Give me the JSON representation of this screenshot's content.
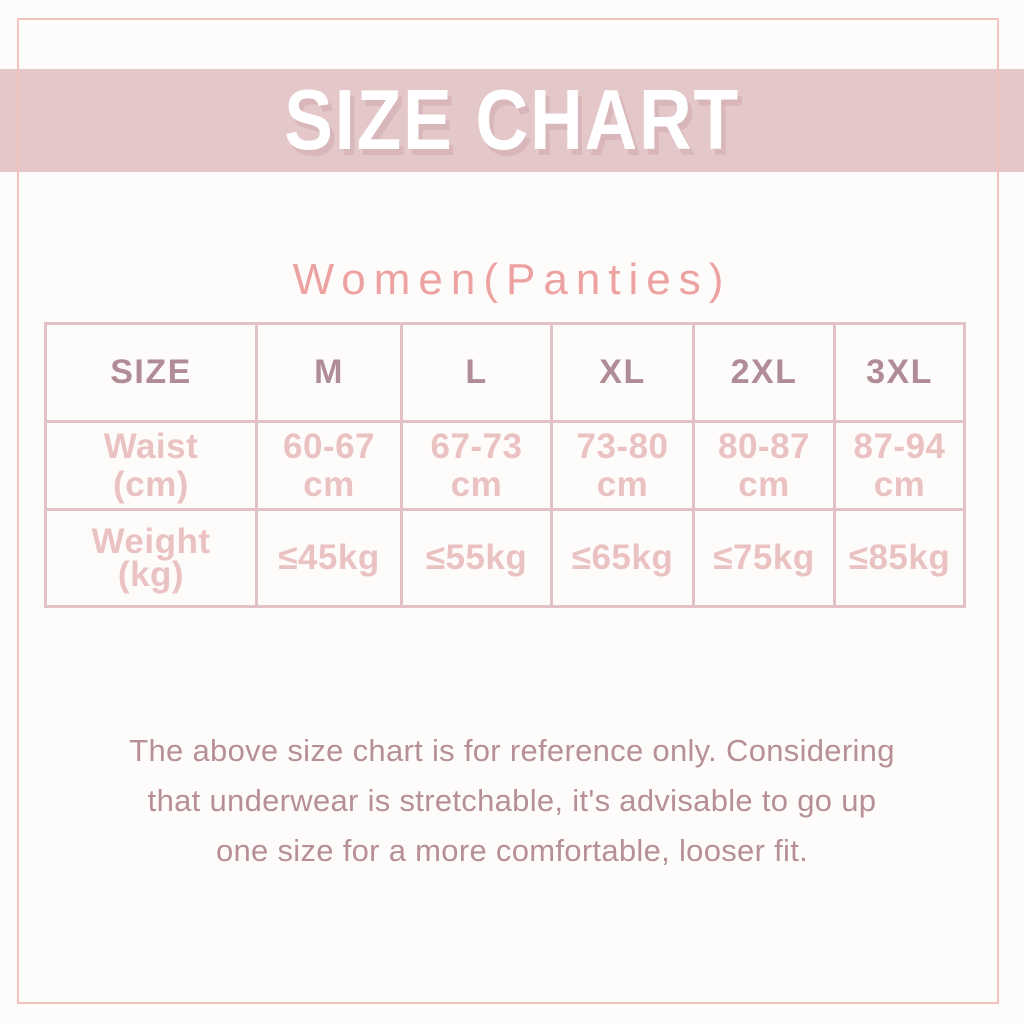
{
  "page": {
    "background_color": "#fefcfb",
    "frame_border_color": "#f4c3bf"
  },
  "banner": {
    "title": "SIZE CHART",
    "background_color": "#e3c7c9",
    "title_color": "#ffffff",
    "title_shadow_color": "#d9b6b9"
  },
  "category": {
    "heading": "Women(Panties)",
    "heading_color": "#eda2a2"
  },
  "size_table": {
    "border_color": "#e2c2c4",
    "header_text_color": "#b08d96",
    "value_text_color": "#eac2c2",
    "columns": [
      "SIZE",
      "M",
      "L",
      "XL",
      "2XL",
      "3XL"
    ],
    "waist_row": {
      "label": "Waist",
      "label_unit": "(cm)",
      "unit": "cm",
      "values": [
        "60-67",
        "67-73",
        "73-80",
        "80-87",
        "87-94"
      ]
    },
    "weight_row": {
      "label": "Weight",
      "label_unit": "(kg)",
      "values": [
        "≤45kg",
        "≤55kg",
        "≤65kg",
        "≤75kg",
        "≤85kg"
      ]
    }
  },
  "footer": {
    "text_color": "#b68f99",
    "lines": [
      "The above size chart is for reference only. Considering",
      "that underwear is stretchable, it's advisable to go up",
      "one size for a more comfortable, looser fit."
    ]
  }
}
